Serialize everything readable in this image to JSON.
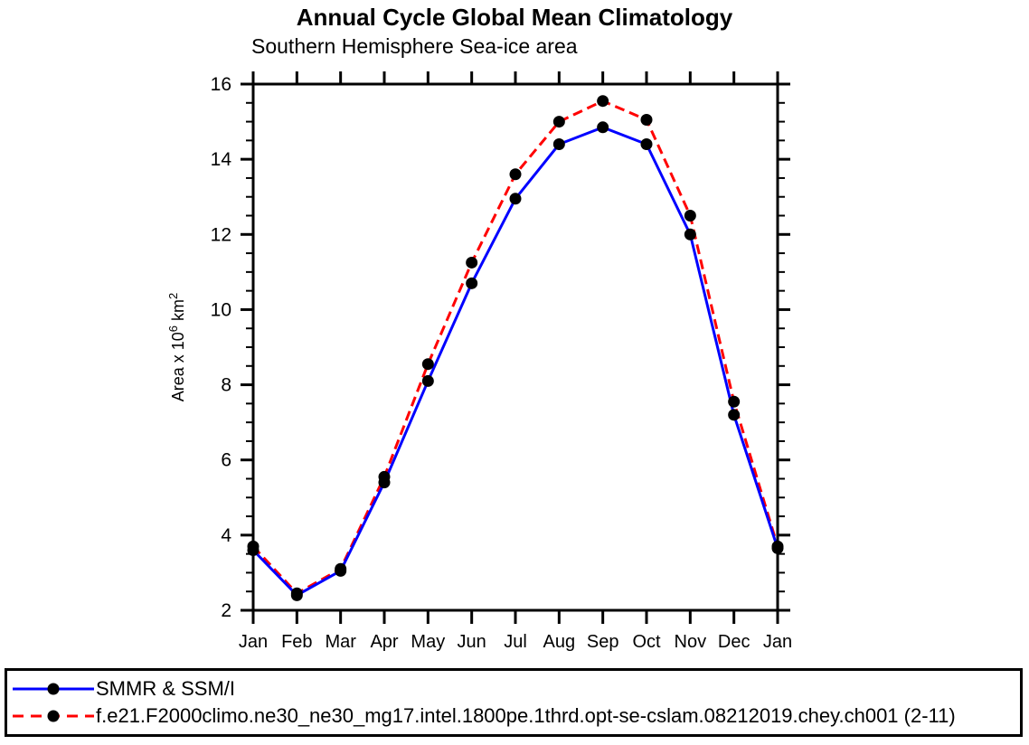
{
  "chart_data": {
    "type": "line",
    "title": "Annual Cycle Global Mean Climatology",
    "subtitle": "Southern Hemisphere Sea-ice area",
    "ylabel_segments": [
      {
        "text": "Area x 10"
      },
      {
        "text": "6",
        "sup": true
      },
      {
        "text": " km"
      },
      {
        "text": "2",
        "sup": true
      }
    ],
    "categories": [
      "Jan",
      "Feb",
      "Mar",
      "Apr",
      "May",
      "Jun",
      "Jul",
      "Aug",
      "Sep",
      "Oct",
      "Nov",
      "Dec",
      "Jan"
    ],
    "ylim": [
      2,
      16
    ],
    "ytick_labels": [
      2,
      4,
      6,
      8,
      10,
      12,
      14,
      16
    ],
    "ytick_minor_step": 0.5,
    "grid": false,
    "legend_position": "bottom-box",
    "axis_color": "#000000",
    "marker_color": "#000000",
    "series": [
      {
        "name": "SMMR & SSM/I",
        "color": "#0000ff",
        "style": "solid",
        "marker": "filled-circle",
        "values": [
          3.6,
          2.4,
          3.05,
          5.4,
          8.1,
          10.7,
          12.95,
          14.4,
          14.85,
          14.4,
          12.0,
          7.2,
          3.65
        ]
      },
      {
        "name": "f.e21.F2000climo.ne30_ne30_mg17.intel.1800pe.1thrd.opt-se-cslam.08212019.chey.ch001 (2-11)",
        "color": "#ff0000",
        "style": "dashed",
        "marker": "filled-circle",
        "values": [
          3.7,
          2.45,
          3.1,
          5.55,
          8.55,
          11.25,
          13.6,
          15.0,
          15.55,
          15.05,
          12.5,
          7.55,
          3.7
        ]
      }
    ]
  }
}
